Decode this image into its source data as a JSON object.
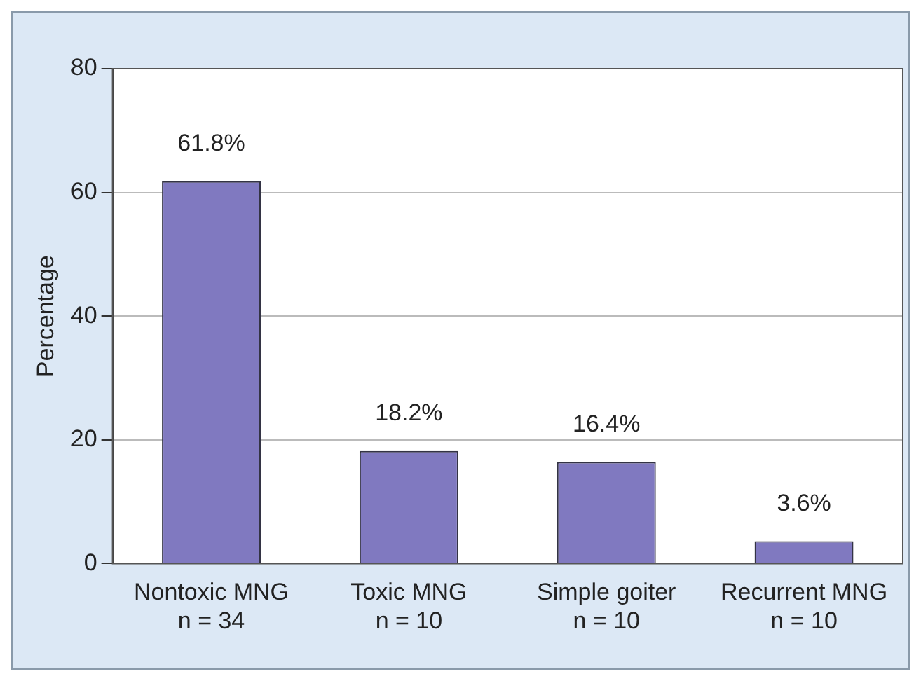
{
  "chart_data": {
    "type": "bar",
    "ylabel": "Percentage",
    "categories": [
      "Nontoxic MNG\nn = 34",
      "Toxic MNG\nn = 10",
      "Simple goiter\nn = 10",
      "Recurrent MNG\nn = 10"
    ],
    "values": [
      61.8,
      18.2,
      16.4,
      3.6
    ],
    "value_labels": [
      "61.8%",
      "18.2%",
      "16.4%",
      "3.6%"
    ],
    "color": "#8079c0",
    "ylim": [
      0,
      80
    ],
    "yticks": [
      0,
      20,
      40,
      60,
      80
    ],
    "grid": "y",
    "legend": false
  }
}
